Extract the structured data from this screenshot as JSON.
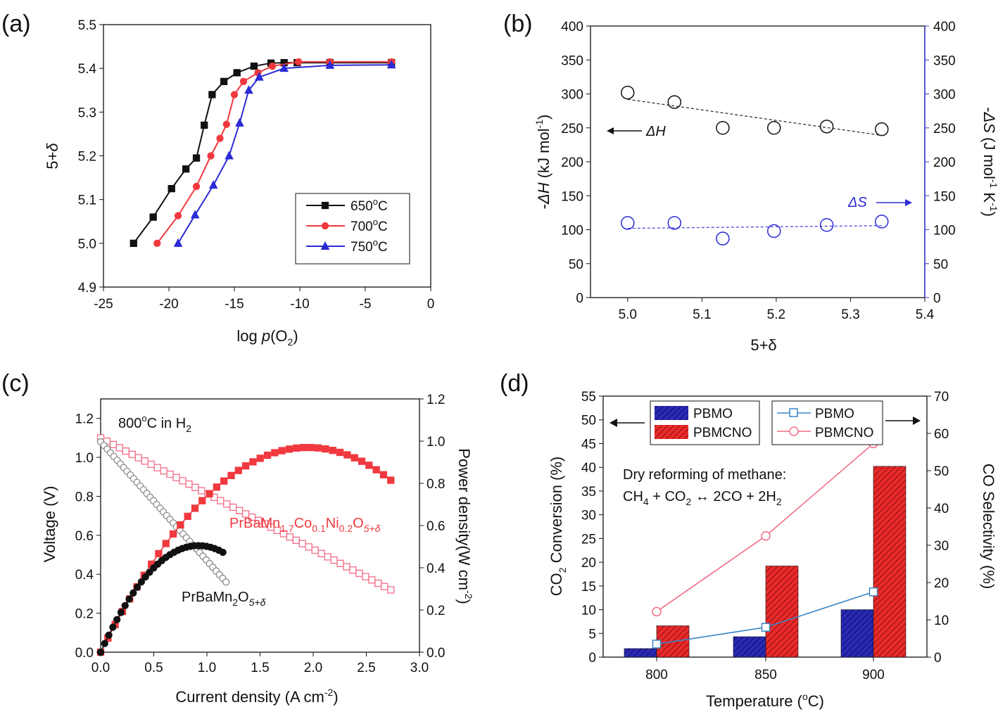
{
  "colors": {
    "black": "#111111",
    "red": "#f0393f",
    "blue": "#2b2bd6",
    "gray": "#8a8a8a",
    "pink": "#f26d86",
    "pink_light": "#f5a5b5",
    "bar_blue": "#2a2ab4",
    "bar_red": "#ea2a2a",
    "axis_blue": "#3b3bd0"
  },
  "chart_data": [
    {
      "panel": "(a)",
      "type": "line",
      "xlabel_parts": [
        "log ",
        "p",
        "(O",
        "2",
        ")"
      ],
      "ylabel_parts": [
        "5+",
        "δ"
      ],
      "xlim": [
        -25,
        0
      ],
      "ylim": [
        4.9,
        5.5
      ],
      "xticks": [
        "-25",
        "-20",
        "-15",
        "-10",
        "-5",
        "0"
      ],
      "yticks": [
        "4.9",
        "5.0",
        "5.1",
        "5.2",
        "5.3",
        "5.4",
        "5.5"
      ],
      "legend_position": "lower-right",
      "series": [
        {
          "name": "650",
          "unit": "oC",
          "marker": "square",
          "color": "#111111",
          "x": [
            -22.7,
            -21.2,
            -19.8,
            -18.7,
            -17.9,
            -17.3,
            -16.7,
            -15.8,
            -14.8,
            -13.5,
            -12.2,
            -11.2,
            -10.2,
            -7.7,
            -3.0
          ],
          "y": [
            5.0,
            5.06,
            5.125,
            5.17,
            5.195,
            5.27,
            5.34,
            5.37,
            5.39,
            5.405,
            5.412,
            5.413,
            5.413,
            5.413,
            5.413
          ]
        },
        {
          "name": "700",
          "unit": "oC",
          "marker": "circle",
          "color": "#f0393f",
          "x": [
            -20.9,
            -19.3,
            -17.9,
            -16.8,
            -16.1,
            -15.6,
            -15.0,
            -14.3,
            -13.2,
            -12.1,
            -10.1,
            -7.7,
            -3.0
          ],
          "y": [
            5.0,
            5.063,
            5.13,
            5.2,
            5.24,
            5.272,
            5.34,
            5.37,
            5.39,
            5.405,
            5.415,
            5.415,
            5.415
          ]
        },
        {
          "name": "750",
          "unit": "oC",
          "marker": "triangle",
          "color": "#2b2bd6",
          "x": [
            -19.3,
            -18.0,
            -16.6,
            -15.4,
            -14.6,
            -13.9,
            -13.1,
            -11.2,
            -7.7,
            -3.0
          ],
          "y": [
            5.0,
            5.065,
            5.133,
            5.2,
            5.275,
            5.35,
            5.38,
            5.4,
            5.407,
            5.408
          ]
        }
      ]
    },
    {
      "panel": "(b)",
      "type": "scatter",
      "xlabel": "5+δ",
      "ylabel_left_parts": [
        "-",
        "ΔH",
        " (kJ mol",
        "-1",
        ")"
      ],
      "ylabel_right_parts": [
        "-",
        "ΔS",
        " (J mol",
        "-1",
        " K",
        "-1",
        ")"
      ],
      "xlim": [
        4.95,
        5.4
      ],
      "ylim": [
        0,
        400
      ],
      "xticks": [
        "5.0",
        "5.1",
        "5.2",
        "5.3",
        "5.4"
      ],
      "yticks": [
        "0",
        "50",
        "100",
        "150",
        "200",
        "250",
        "300",
        "350",
        "400"
      ],
      "annotations": {
        "dH": "ΔH",
        "dS": "ΔS"
      },
      "series": [
        {
          "name": "ΔH",
          "axis": "left",
          "color": "#111111",
          "x": [
            5.0,
            5.063,
            5.128,
            5.197,
            5.268,
            5.342
          ],
          "y": [
            302,
            288,
            250,
            250,
            252,
            248
          ],
          "fit": [
            [
              5.0,
              292
            ],
            [
              5.342,
              239
            ]
          ]
        },
        {
          "name": "ΔS",
          "axis": "right",
          "color": "#2b2bd6",
          "x": [
            5.0,
            5.063,
            5.128,
            5.197,
            5.268,
            5.342
          ],
          "y": [
            110,
            110,
            87,
            98,
            107,
            112
          ],
          "fit": [
            [
              5.0,
              102
            ],
            [
              5.342,
              106
            ]
          ]
        }
      ]
    },
    {
      "panel": "(c)",
      "type": "line",
      "xlabel_parts": [
        "Current density (A cm",
        "-2",
        ")"
      ],
      "ylabel_left": "Voltage (V)",
      "ylabel_right_parts": [
        "Power density(W cm",
        "-2",
        ")"
      ],
      "xlim": [
        0,
        3.0
      ],
      "ylim_left": [
        0,
        1.3
      ],
      "ylim_right": [
        0,
        1.2
      ],
      "xticks": [
        "0.0",
        "0.5",
        "1.0",
        "1.5",
        "2.0",
        "2.5",
        "3.0"
      ],
      "yticks_left": [
        "0.0",
        "0.2",
        "0.4",
        "0.6",
        "0.8",
        "1.0",
        "1.2"
      ],
      "yticks_right": [
        "0.0",
        "0.2",
        "0.4",
        "0.6",
        "0.8",
        "1.0",
        "1.2"
      ],
      "condition_parts": [
        "800",
        "o",
        "C in H",
        "2"
      ],
      "label_pbmcno_parts": [
        "PrBaMn",
        "1.7",
        "Co",
        "0.1",
        "Ni",
        "0.2",
        "O",
        "5+δ"
      ],
      "label_pbmo_parts": [
        "PrBaMn",
        "2",
        "O",
        "5+δ"
      ],
      "series": [
        {
          "name": "PBMCNO voltage",
          "axis": "left",
          "color": "#f26d86",
          "marker": "open-square",
          "x_end": 2.73,
          "v0": 1.1,
          "v_end": 0.32
        },
        {
          "name": "PBMO voltage",
          "axis": "left",
          "color": "#8a8a8a",
          "marker": "open-circle",
          "x_end": 1.18,
          "v0": 1.08,
          "v_end": 0.36
        },
        {
          "name": "PBMCNO power",
          "axis": "right",
          "color": "#f0393f",
          "marker": "square",
          "x_end": 2.73,
          "peak_x": 1.95,
          "peak_p": 0.97
        },
        {
          "name": "PBMO power",
          "axis": "right",
          "color": "#111111",
          "marker": "circle",
          "x_end": 1.15,
          "peak_x": 0.92,
          "peak_p": 0.505
        }
      ]
    },
    {
      "panel": "(d)",
      "type": "bar",
      "categories": [
        "800",
        "850",
        "900"
      ],
      "xlabel_parts": [
        "Temperature (",
        "o",
        "C)"
      ],
      "ylabel_left_parts": [
        "CO",
        "2",
        " Conversion (%)"
      ],
      "ylabel_right": "CO Selectivity (%)",
      "ylim_left": [
        0,
        55
      ],
      "ylim_right": [
        0,
        70
      ],
      "yticks_left": [
        "0",
        "5",
        "10",
        "15",
        "20",
        "25",
        "30",
        "35",
        "40",
        "45",
        "50",
        "55"
      ],
      "yticks_right": [
        "0",
        "10",
        "20",
        "30",
        "40",
        "50",
        "60",
        "70"
      ],
      "annotation_line1": "Dry reforming of methane:",
      "annotation_line2_parts": [
        "CH",
        "4",
        " + CO",
        "2",
        " ↔ 2CO + 2H",
        "2"
      ],
      "legend_bars": [
        "PBMO",
        "PBMCNO"
      ],
      "legend_lines": [
        "PBMO",
        "PBMCNO"
      ],
      "bar_series": [
        {
          "name": "PBMO",
          "color": "#2a2ab4",
          "values": [
            1.8,
            4.3,
            10.0
          ]
        },
        {
          "name": "PBMCNO",
          "color": "#ea2a2a",
          "values": [
            6.6,
            19.2,
            40.2
          ]
        }
      ],
      "line_series": [
        {
          "name": "PBMO",
          "color": "#3a85c8",
          "values": [
            3.5,
            8.0,
            17.5
          ]
        },
        {
          "name": "PBMCNO",
          "color": "#f26d86",
          "values": [
            12.2,
            32.5,
            57.3
          ]
        }
      ]
    }
  ]
}
